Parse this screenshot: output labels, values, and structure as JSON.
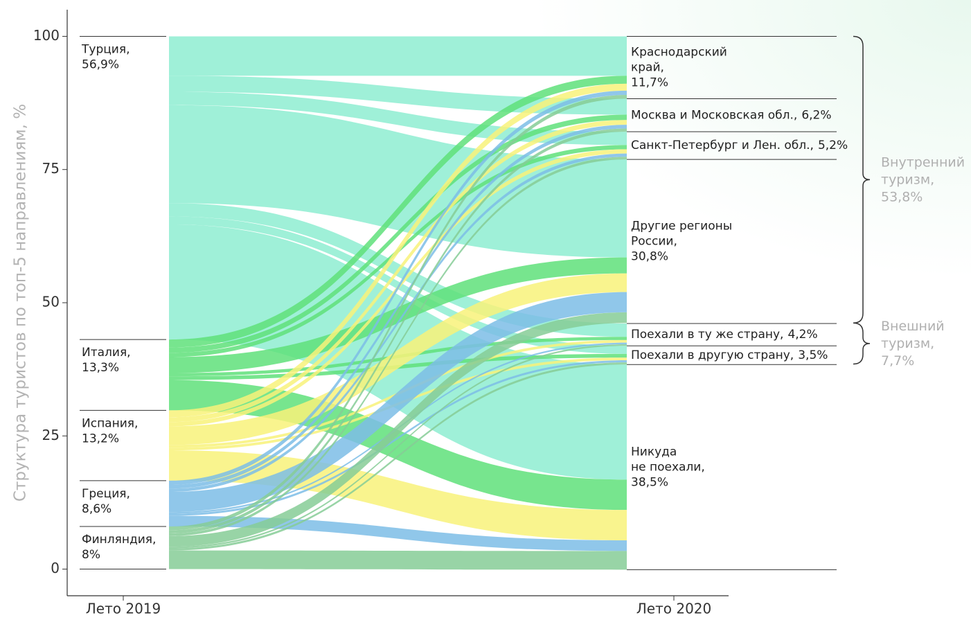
{
  "chart_data": {
    "type": "alluvial",
    "ylabel": "Структура туристов по топ-5 направлениям, %",
    "categories": [
      "Лето 2019",
      "Лето 2020"
    ],
    "ylim": [
      -5,
      105
    ],
    "yticks": [
      0,
      25,
      50,
      75,
      100
    ],
    "sources": [
      {
        "label": [
          "Турция,"
        ],
        "value": 56.9,
        "value_label": "56,9%",
        "color": "#9ff0d8",
        "flows": [
          7.4,
          3.0,
          2.5,
          18.4,
          2.5,
          1.5,
          21.6
        ]
      },
      {
        "label": [
          "Италия,"
        ],
        "value": 13.3,
        "value_label": "13,3%",
        "color": "#5fe07a",
        "flows": [
          1.5,
          1.0,
          0.8,
          3.0,
          0.6,
          0.7,
          5.7
        ]
      },
      {
        "label": [
          "Испания,"
        ],
        "value": 13.2,
        "value_label": "13,2%",
        "color": "#f8f27a",
        "flows": [
          1.3,
          0.9,
          0.8,
          3.5,
          0.5,
          0.5,
          5.7
        ]
      },
      {
        "label": [
          "Греция,"
        ],
        "value": 8.6,
        "value_label": "8,6%",
        "color": "#7cbde6",
        "flows": [
          0.8,
          0.7,
          0.6,
          3.8,
          0.3,
          0.4,
          2.0
        ]
      },
      {
        "label": [
          "Финляндия,"
        ],
        "value": 8,
        "value_label": "8%",
        "color": "#86cc96",
        "flows": [
          0.7,
          0.6,
          0.5,
          2.0,
          0.3,
          0.4,
          3.5
        ]
      }
    ],
    "targets": [
      {
        "label": [
          "Краснодарский",
          "край,"
        ],
        "value": 11.7,
        "value_label": "11,7%"
      },
      {
        "label": [
          "Москва и Московская обл.,"
        ],
        "value": 6.2,
        "value_label": "6,2%"
      },
      {
        "label": [
          "Санкт-Петербург и Лен. обл.,"
        ],
        "value": 5.2,
        "value_label": "5,2%"
      },
      {
        "label": [
          "Другие регионы",
          "России,"
        ],
        "value": 30.8,
        "value_label": "30,8%"
      },
      {
        "label": [
          "Поехали в ту же страну,"
        ],
        "value": 4.2,
        "value_label": "4,2%"
      },
      {
        "label": [
          "Поехали в другую страну,"
        ],
        "value": 3.5,
        "value_label": "3,5%"
      },
      {
        "label": [
          "Никуда",
          "не поехали,"
        ],
        "value": 38.5,
        "value_label": "38,5%"
      }
    ],
    "groups": [
      {
        "label": [
          "Внутренний",
          "туризм,"
        ],
        "value": 53.8,
        "value_label": "53,8%"
      },
      {
        "label": [
          "Внешний",
          "туризм,"
        ],
        "value": 7.7,
        "value_label": "7,7%"
      }
    ]
  }
}
